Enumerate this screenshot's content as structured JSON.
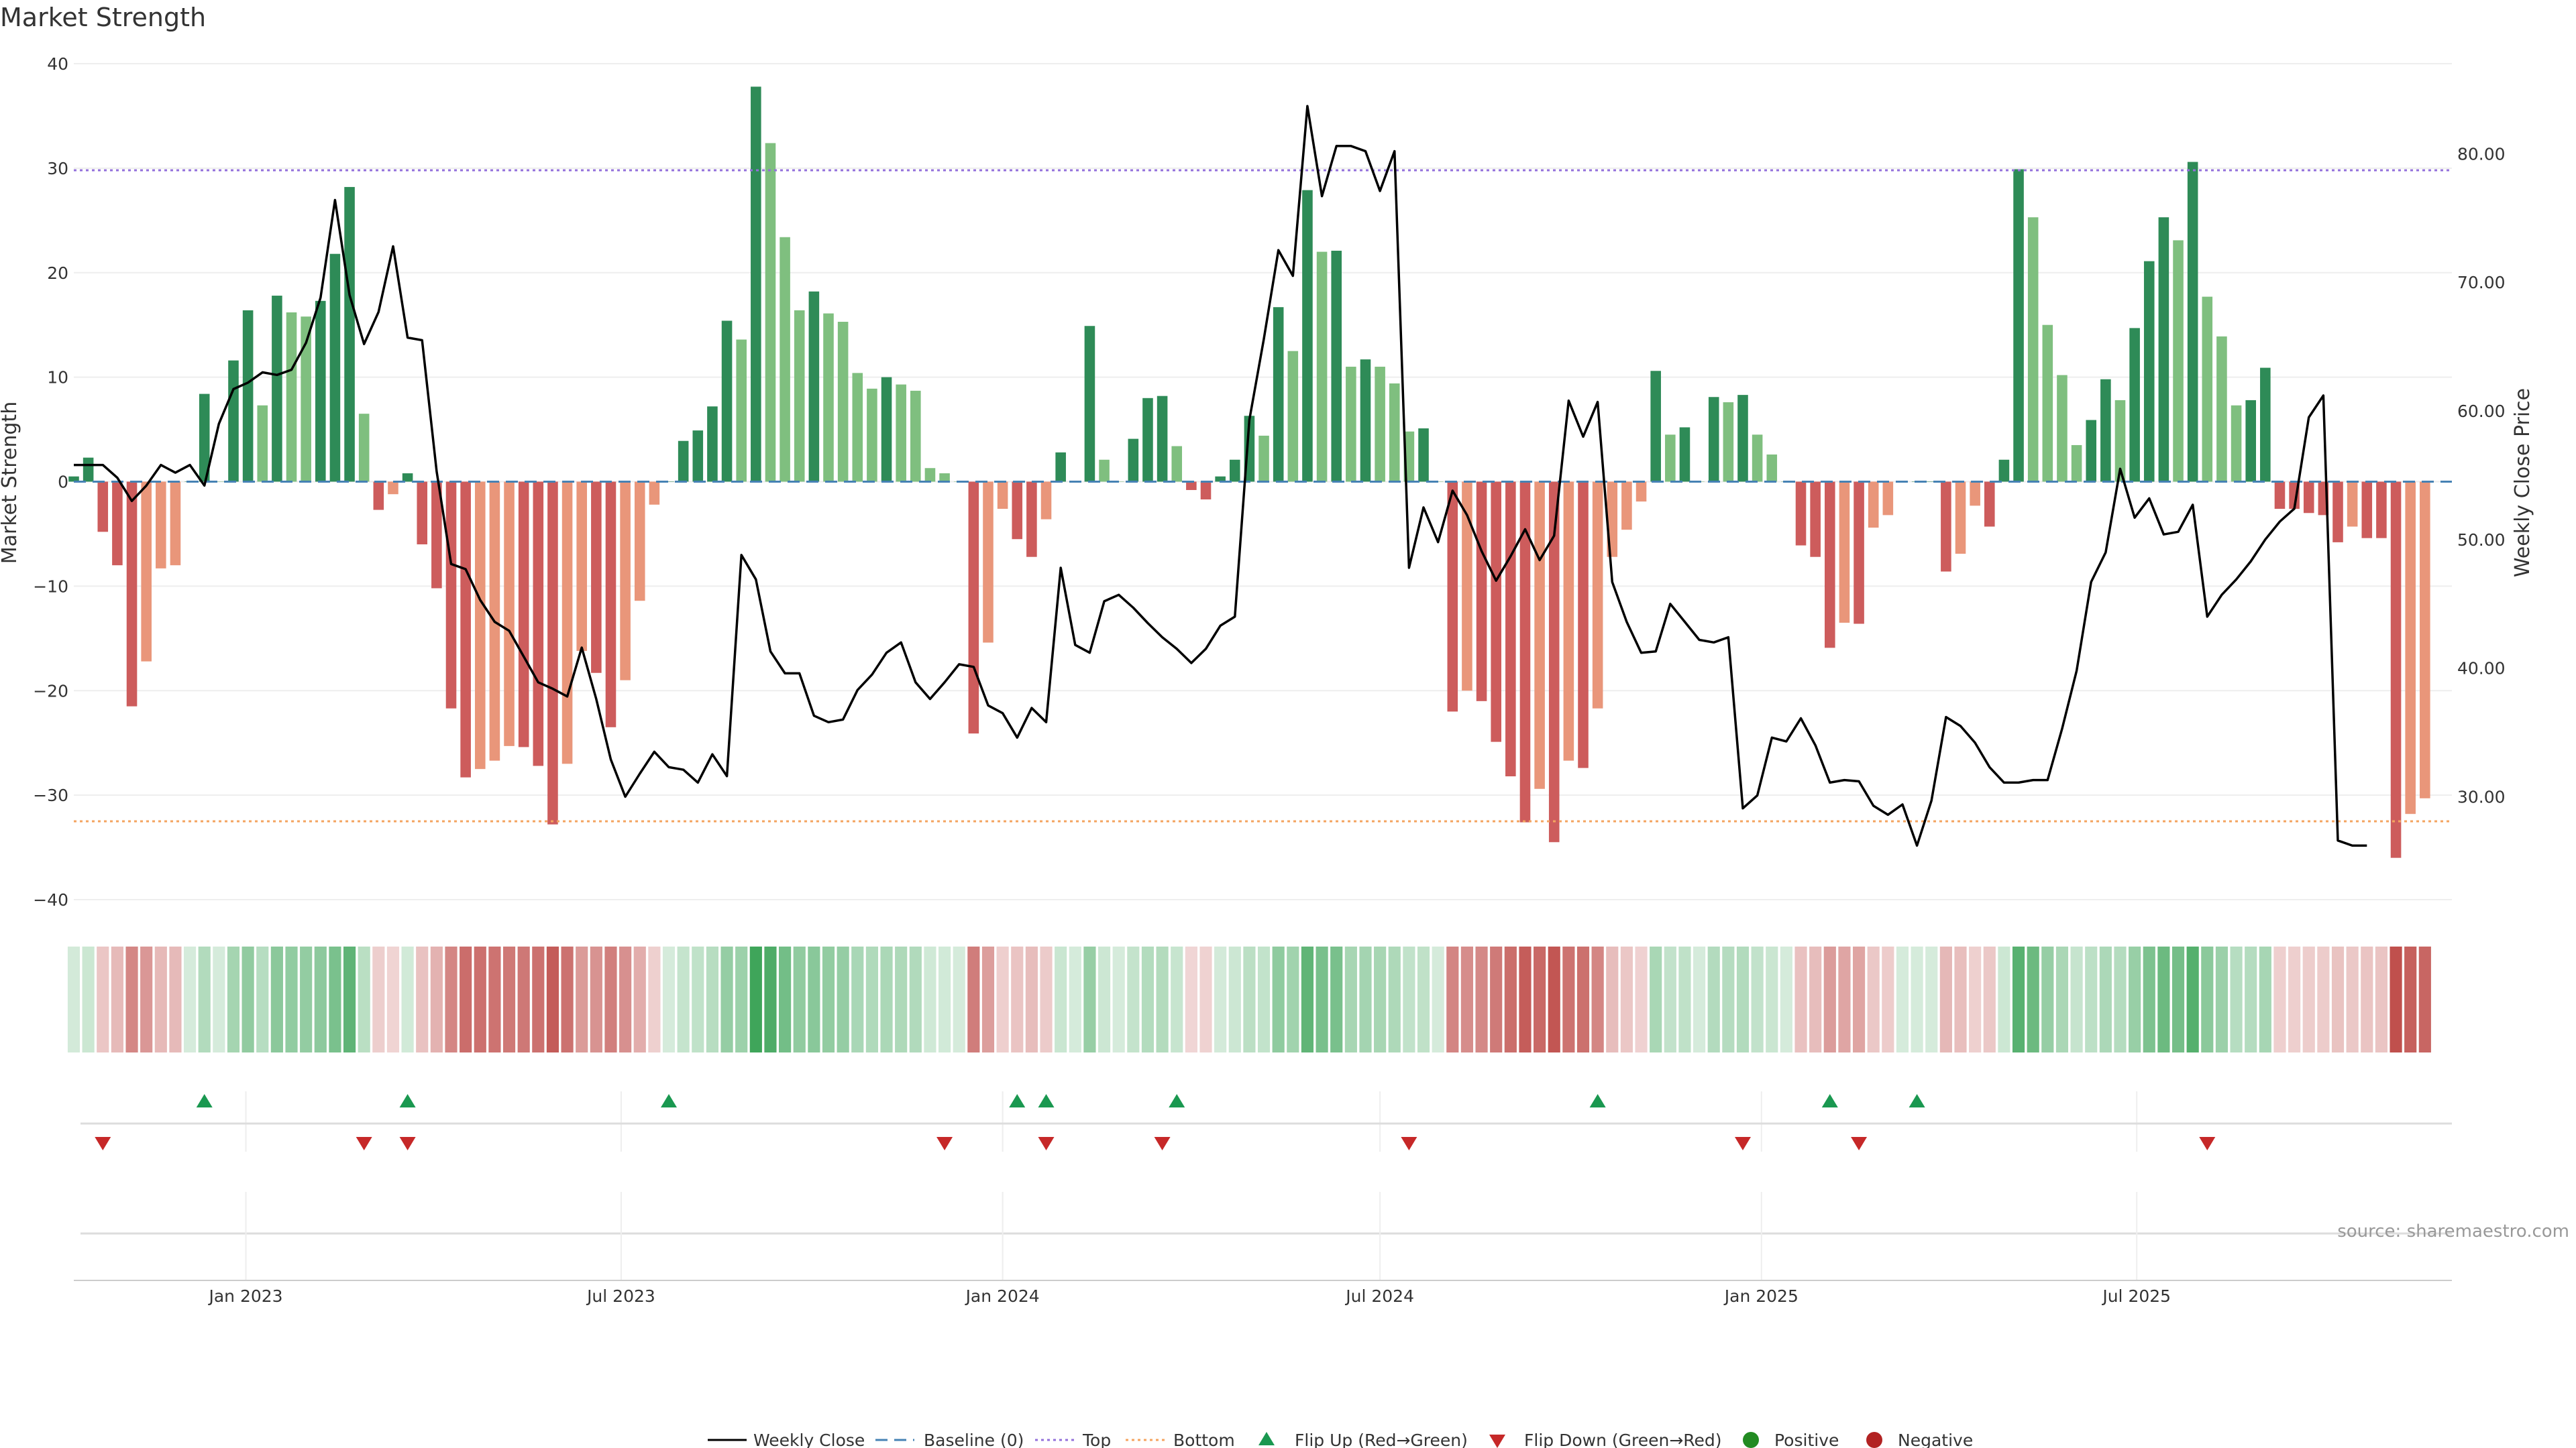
{
  "title": "Market Strength",
  "source": "source: sharemaestro.com",
  "chart_data": {
    "type": "bar",
    "title": "Market Strength",
    "ylabel": "Market Strength",
    "y2label": "Weekly Close Price",
    "ylim": [
      -40,
      40
    ],
    "y2lim": [
      22,
      87
    ],
    "yticks": [
      40,
      30,
      20,
      10,
      0,
      -10,
      -20,
      -30,
      -40
    ],
    "y2ticks": [
      80,
      70,
      60,
      50,
      40,
      30
    ],
    "y2ticklabels": [
      "80.00",
      "70.00",
      "60.00",
      "50.00",
      "40.00",
      "30.00"
    ],
    "x_start_date": "2022-10-10",
    "x_step_days": 7,
    "x_end_date": "2025-11-30",
    "xticks": [
      "2023-01-01",
      "2023-07-01",
      "2024-01-01",
      "2024-07-01",
      "2025-01-01",
      "2025-07-01"
    ],
    "xticklabels": [
      "Jan 2023",
      "Jul 2023",
      "Jan 2024",
      "Jul 2024",
      "Jan 2025",
      "Jul 2025"
    ],
    "top_line": 29.8,
    "bottom_line": -32.5,
    "strength": [
      0.5,
      2.3,
      -4.8,
      -8,
      -21.5,
      -17.2,
      -8.3,
      -8,
      0,
      8.4,
      0,
      11.6,
      16.4,
      7.3,
      17.8,
      16.2,
      15.8,
      17.3,
      21.8,
      28.2,
      6.5,
      -2.7,
      -1.2,
      0.8,
      -6,
      -10.2,
      -21.7,
      -28.3,
      -27.5,
      -26.7,
      -25.3,
      -25.4,
      -27.2,
      -32.8,
      -27,
      -16.2,
      -18.3,
      -23.5,
      -19,
      -11.4,
      -2.2,
      0,
      3.9,
      4.9,
      7.2,
      15.4,
      13.6,
      37.8,
      32.4,
      23.4,
      16.4,
      18.2,
      16.1,
      15.3,
      10.4,
      8.9,
      10,
      9.3,
      8.7,
      1.3,
      0.8,
      0,
      -24.1,
      -15.4,
      -2.6,
      -5.5,
      -7.2,
      -3.6,
      2.8,
      0,
      14.9,
      2.1,
      0,
      4.1,
      8,
      8.2,
      3.4,
      -0.8,
      -1.7,
      0.5,
      2.1,
      6.3,
      4.4,
      16.7,
      12.5,
      27.9,
      22,
      22.1,
      11,
      11.7,
      11,
      9.4,
      4.8,
      5.1,
      0,
      -22,
      -20,
      -21,
      -24.9,
      -28.2,
      -32.6,
      -29.4,
      -34.5,
      -26.7,
      -27.4,
      -21.7,
      -7.2,
      -4.6,
      -1.9,
      10.6,
      4.5,
      5.2,
      0,
      8.1,
      7.6,
      8.3,
      4.5,
      2.6,
      0,
      -6.1,
      -7.2,
      -15.9,
      -13.5,
      -13.6,
      -4.4,
      -3.2,
      0,
      0,
      0,
      -8.6,
      -6.9,
      -2.3,
      -4.3,
      2.1,
      29.9,
      25.3,
      15,
      10.2,
      3.5,
      5.9,
      9.8,
      7.8,
      14.7,
      21.1,
      25.3,
      23.1,
      30.6,
      17.7,
      13.9,
      7.3,
      7.8,
      10.9,
      -2.6,
      -2.6,
      -3,
      -3.2,
      -5.8,
      -4.3,
      -5.4,
      -5.4,
      -36,
      -31.8,
      -30.3
    ],
    "weekly_close": [
      55.8,
      55.8,
      55.8,
      54.8,
      53,
      54.2,
      55.8,
      55.2,
      55.8,
      54.2,
      59,
      61.7,
      62.2,
      63,
      62.8,
      63.2,
      65.3,
      68.8,
      76.4,
      69,
      65.2,
      67.7,
      72.8,
      65.7,
      65.5,
      55.3,
      48.1,
      47.7,
      45.3,
      43.6,
      42.9,
      40.9,
      38.9,
      38.4,
      37.8,
      41.6,
      37.6,
      32.9,
      30,
      31.8,
      33.5,
      32.3,
      32.1,
      31.1,
      33.3,
      31.6,
      48.8,
      46.9,
      41.3,
      39.6,
      39.6,
      36.3,
      35.8,
      36,
      38.3,
      39.5,
      41.2,
      42,
      38.9,
      37.6,
      38.9,
      40.3,
      40.1,
      37.1,
      36.5,
      34.6,
      36.9,
      35.8,
      47.8,
      41.8,
      41.2,
      45.2,
      45.7,
      44.7,
      43.5,
      42.4,
      41.5,
      40.4,
      41.5,
      43.3,
      44,
      59.3,
      65.6,
      72.5,
      70.5,
      83.7,
      76.7,
      80.6,
      80.6,
      80.2,
      77.1,
      80.2,
      47.8,
      52.5,
      49.8,
      53.8,
      51.9,
      49.1,
      46.8,
      48.7,
      50.8,
      48.4,
      50.3,
      60.8,
      58,
      60.7,
      46.7,
      43.6,
      41.2,
      41.3,
      45,
      43.6,
      42.2,
      42,
      42.4,
      29.1,
      30.1,
      34.6,
      34.3,
      36.1,
      34,
      31.1,
      31.3,
      31.2,
      29.3,
      28.6,
      29.4,
      26.2,
      29.7,
      36.2,
      35.5,
      34.2,
      32.3,
      31.1,
      31.1,
      31.3,
      31.3,
      35.3,
      39.8,
      46.7,
      49,
      55.5,
      51.7,
      53.2,
      50.4,
      50.6,
      52.7,
      44,
      45.7,
      46.9,
      48.3,
      50,
      51.4,
      52.4,
      59.5,
      61.2,
      26.6,
      26.2,
      26.2
    ],
    "flip_up_weeks": [
      9,
      23,
      41,
      65,
      67,
      76,
      105,
      121,
      127
    ],
    "flip_down_weeks": [
      2,
      20,
      23,
      60,
      67,
      75,
      92,
      115,
      123,
      147
    ],
    "colors": {
      "strong_up": "#2e8b57",
      "mild_up": "#7fbf7f",
      "strong_down": "#cd5c5c",
      "mild_down": "#e9967a",
      "line": "#000000",
      "baseline": "#4682b4",
      "top": "#9370db",
      "bottom": "#f4a460",
      "flip_up": "#1a9850",
      "flip_down": "#c62828"
    }
  },
  "legend": {
    "weekly_close": "Weekly Close",
    "baseline": "Baseline (0)",
    "top": "Top",
    "bottom": "Bottom",
    "flip_up": "Flip Up (Red→Green)",
    "flip_down": "Flip Down (Green→Red)",
    "positive": "Positive",
    "negative": "Negative"
  }
}
